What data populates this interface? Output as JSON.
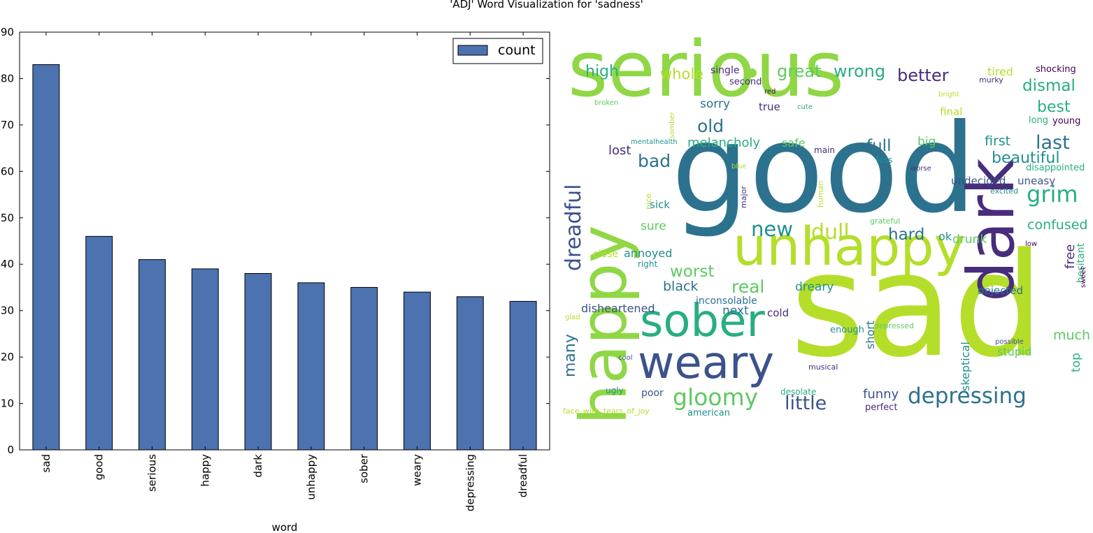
{
  "chart_data": [
    {
      "type": "bar",
      "title": "'ADJ' Word Visualization for 'sadness'",
      "xlabel": "word",
      "ylabel": "",
      "ylim": [
        0,
        90
      ],
      "yticks": [
        0,
        10,
        20,
        30,
        40,
        50,
        60,
        70,
        80,
        90
      ],
      "categories": [
        "sad",
        "good",
        "serious",
        "happy",
        "dark",
        "unhappy",
        "sober",
        "weary",
        "depressing",
        "dreadful"
      ],
      "series": [
        {
          "name": "count",
          "values": [
            83,
            46,
            41,
            39,
            38,
            36,
            35,
            34,
            33,
            32
          ],
          "color": "#4c72b0"
        }
      ],
      "legend": "top-right",
      "grid": false
    },
    {
      "type": "wordcloud",
      "words": [
        "sad",
        "good",
        "serious",
        "happy",
        "dark",
        "unhappy",
        "sober",
        "weary",
        "depressing",
        "dreadful",
        "gloomy",
        "little",
        "new",
        "dull",
        "grim",
        "high",
        "whole",
        "single",
        "great",
        "wrong",
        "better",
        "tired",
        "shocking",
        "second",
        "murky",
        "dismal",
        "red",
        "bright",
        "broken",
        "cute",
        "true",
        "sorry",
        "final",
        "best",
        "somber",
        "long",
        "young",
        "old",
        "mentalhealth",
        "melancholy",
        "safe",
        "main",
        "full",
        "big",
        "first",
        "last",
        "lost",
        "bad",
        "less",
        "beautiful",
        "blue",
        "worse",
        "disappointed",
        "major",
        "human",
        "undecided",
        "uneasy",
        "nice",
        "excited",
        "sick",
        "grateful",
        "sure",
        "hard",
        "ok",
        "confused",
        "annoyed",
        "drunk",
        "free",
        "close",
        "low",
        "right",
        "worst",
        "hesitant",
        "real",
        "sweet",
        "black",
        "dreary",
        "skeptical",
        "dejected",
        "inconsolable",
        "next",
        "disheartened",
        "cold",
        "glad",
        "enough",
        "depressed",
        "short",
        "many",
        "much",
        "cool",
        "possible",
        "stupid",
        "top",
        "musical",
        "ugly",
        "poor",
        "desolate",
        "funny",
        "perfect",
        "face_with_tears_of_joy",
        "american"
      ]
    }
  ]
}
